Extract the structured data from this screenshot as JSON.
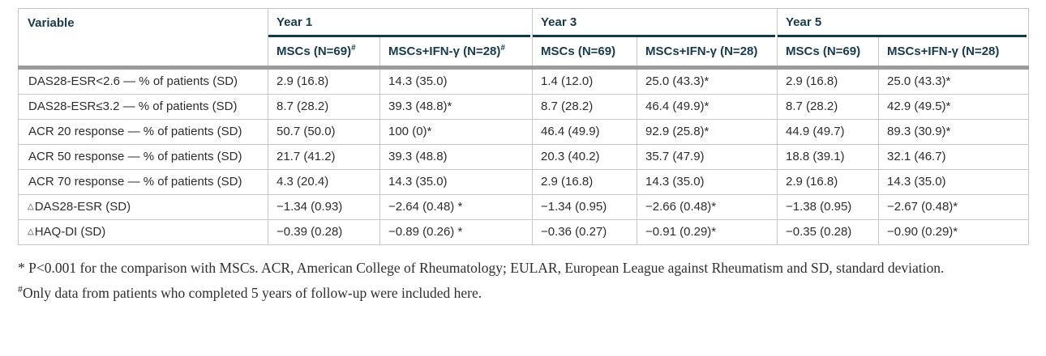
{
  "colors": {
    "header_navy": "#173a4d",
    "year_rule_navy": "#12374b",
    "thick_band_gray": "#9b9b9d",
    "grid_line_gray": "#c7c7c7",
    "body_text": "#2d2d2d"
  },
  "table": {
    "variable_header": "Variable",
    "year_groups": [
      {
        "label": "Year 1"
      },
      {
        "label": "Year 3"
      },
      {
        "label": "Year 5"
      }
    ],
    "sub_headers": [
      {
        "label": "MSCs (N=69)",
        "sup": "#"
      },
      {
        "label": "MSCs+IFN-γ (N=28)",
        "sup": "#"
      },
      {
        "label": "MSCs (N=69)",
        "sup": ""
      },
      {
        "label": "MSCs+IFN-γ (N=28)",
        "sup": ""
      },
      {
        "label": "MSCs (N=69)",
        "sup": ""
      },
      {
        "label": "MSCs+IFN-γ (N=28)",
        "sup": ""
      }
    ],
    "rows": [
      {
        "prefix": "",
        "label": "DAS28-ESR<2.6 — % of patients (SD)",
        "cells": [
          "2.9 (16.8)",
          "14.3 (35.0)",
          "1.4 (12.0)",
          "25.0 (43.3)*",
          "2.9 (16.8)",
          "25.0 (43.3)*"
        ]
      },
      {
        "prefix": "",
        "label": "DAS28-ESR≤3.2 — % of patients (SD)",
        "cells": [
          "8.7 (28.2)",
          "39.3 (48.8)*",
          "8.7 (28.2)",
          "46.4 (49.9)*",
          "8.7 (28.2)",
          "42.9 (49.5)*"
        ]
      },
      {
        "prefix": "",
        "label": "ACR 20 response — % of patients (SD)",
        "cells": [
          "50.7 (50.0)",
          "100 (0)*",
          "46.4 (49.9)",
          "92.9 (25.8)*",
          "44.9 (49.7)",
          "89.3 (30.9)*"
        ]
      },
      {
        "prefix": "",
        "label": "ACR 50 response — % of patients (SD)",
        "cells": [
          "21.7 (41.2)",
          "39.3 (48.8)",
          "20.3 (40.2)",
          "35.7 (47.9)",
          "18.8 (39.1)",
          "32.1 (46.7)"
        ]
      },
      {
        "prefix": "",
        "label": "ACR 70 response — % of patients (SD)",
        "cells": [
          "4.3 (20.4)",
          "14.3 (35.0)",
          "2.9 (16.8)",
          "14.3 (35.0)",
          "2.9 (16.8)",
          "14.3 (35.0)"
        ]
      },
      {
        "prefix": "△",
        "label": "DAS28-ESR (SD)",
        "cells": [
          "−1.34 (0.93)",
          "−2.64 (0.48) *",
          "−1.34 (0.95)",
          "−2.66 (0.48)*",
          "−1.38 (0.95)",
          "−2.67 (0.48)*"
        ]
      },
      {
        "prefix": "△",
        "label": "HAQ-DI (SD)",
        "cells": [
          "−0.39 (0.28)",
          "−0.89 (0.26) *",
          "−0.36 (0.27)",
          "−0.91 (0.29)*",
          "−0.35 (0.28)",
          "−0.90 (0.29)*"
        ]
      }
    ]
  },
  "footnotes": {
    "asterisk_note": "* P<0.001 for the comparison with MSCs. ACR, American College of Rheumatology; EULAR, European League against Rheumatism and SD, standard deviation.",
    "hash_symbol": "#",
    "hash_note": "Only data from patients who completed 5 years of follow-up were included here."
  }
}
